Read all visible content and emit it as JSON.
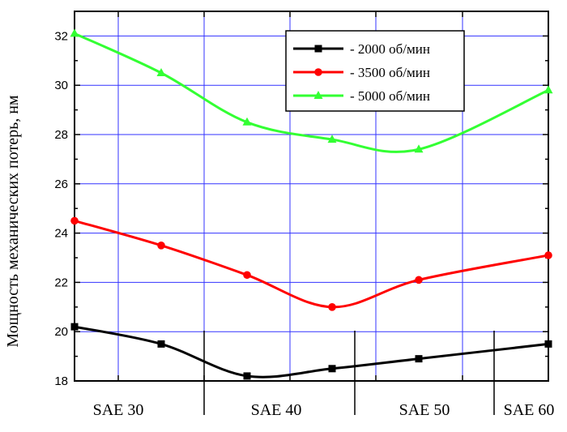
{
  "chart_data": {
    "type": "line",
    "ylabel": "Мощность механических потерь, нм",
    "xlabel": "",
    "ylim": [
      18,
      33
    ],
    "yticks": [
      18,
      20,
      22,
      24,
      26,
      28,
      30,
      32
    ],
    "grid": true,
    "legend_position": "top-right",
    "groups": [
      "SAE 30",
      "SAE 40",
      "SAE 50",
      "SAE 60"
    ],
    "x": [
      1,
      2,
      3,
      4,
      5,
      6
    ],
    "series": [
      {
        "name": "- 2000 об/мин",
        "color": "#000000",
        "marker": "square",
        "values": [
          20.2,
          19.5,
          18.2,
          18.5,
          18.9,
          19.5
        ]
      },
      {
        "name": "- 3500 об/мин",
        "color": "#ff0000",
        "marker": "circle",
        "values": [
          24.5,
          23.5,
          22.3,
          21.0,
          22.1,
          23.1
        ]
      },
      {
        "name": "- 5000 об/мин",
        "color": "#33ff33",
        "marker": "triangle",
        "values": [
          32.1,
          30.5,
          28.5,
          27.8,
          27.4,
          29.8
        ]
      }
    ]
  }
}
